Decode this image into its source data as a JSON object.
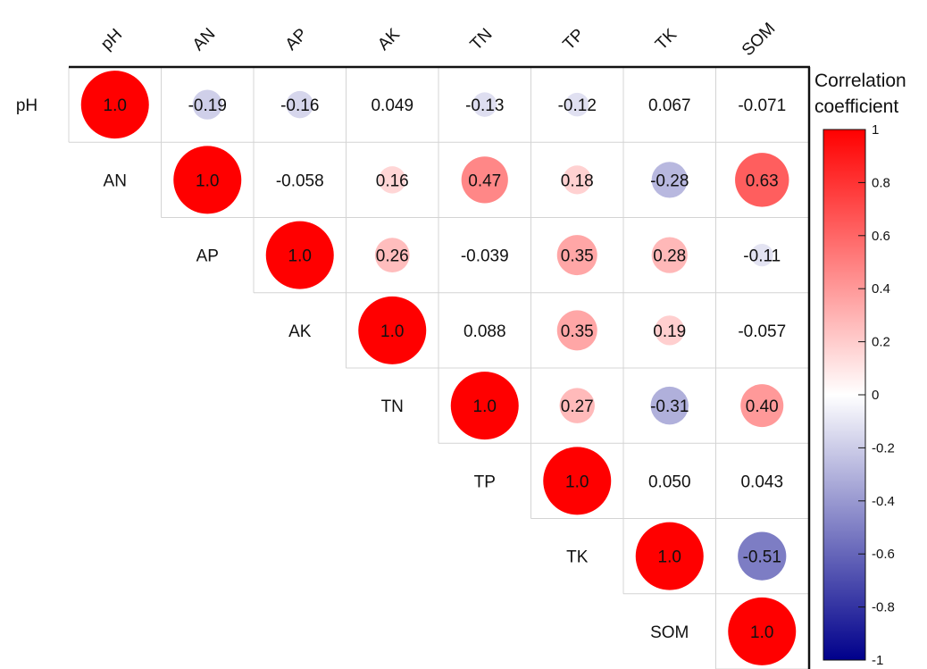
{
  "chart_data": {
    "type": "heatmap",
    "subtype": "correlation-lower-triangle-circles",
    "variables": [
      "pH",
      "AN",
      "AP",
      "AK",
      "TN",
      "TP",
      "TK",
      "SOM"
    ],
    "cells": [
      {
        "row": "pH",
        "col": "pH",
        "value": 1.0,
        "label": "1.0"
      },
      {
        "row": "pH",
        "col": "AN",
        "value": -0.19,
        "label": "-0.19"
      },
      {
        "row": "pH",
        "col": "AP",
        "value": -0.16,
        "label": "-0.16"
      },
      {
        "row": "pH",
        "col": "AK",
        "value": 0.049,
        "label": "0.049"
      },
      {
        "row": "pH",
        "col": "TN",
        "value": -0.13,
        "label": "-0.13"
      },
      {
        "row": "pH",
        "col": "TP",
        "value": -0.12,
        "label": "-0.12"
      },
      {
        "row": "pH",
        "col": "TK",
        "value": 0.067,
        "label": "0.067"
      },
      {
        "row": "pH",
        "col": "SOM",
        "value": -0.071,
        "label": "-0.071"
      },
      {
        "row": "AN",
        "col": "AN",
        "value": 1.0,
        "label": "1.0"
      },
      {
        "row": "AN",
        "col": "AP",
        "value": -0.058,
        "label": "-0.058"
      },
      {
        "row": "AN",
        "col": "AK",
        "value": 0.16,
        "label": "0.16"
      },
      {
        "row": "AN",
        "col": "TN",
        "value": 0.47,
        "label": "0.47"
      },
      {
        "row": "AN",
        "col": "TP",
        "value": 0.18,
        "label": "0.18"
      },
      {
        "row": "AN",
        "col": "TK",
        "value": -0.28,
        "label": "-0.28"
      },
      {
        "row": "AN",
        "col": "SOM",
        "value": 0.63,
        "label": "0.63"
      },
      {
        "row": "AP",
        "col": "AP",
        "value": 1.0,
        "label": "1.0"
      },
      {
        "row": "AP",
        "col": "AK",
        "value": 0.26,
        "label": "0.26"
      },
      {
        "row": "AP",
        "col": "TN",
        "value": -0.039,
        "label": "-0.039"
      },
      {
        "row": "AP",
        "col": "TP",
        "value": 0.35,
        "label": "0.35"
      },
      {
        "row": "AP",
        "col": "TK",
        "value": 0.28,
        "label": "0.28"
      },
      {
        "row": "AP",
        "col": "SOM",
        "value": -0.11,
        "label": "-0.11"
      },
      {
        "row": "AK",
        "col": "AK",
        "value": 1.0,
        "label": "1.0"
      },
      {
        "row": "AK",
        "col": "TN",
        "value": 0.088,
        "label": "0.088"
      },
      {
        "row": "AK",
        "col": "TP",
        "value": 0.35,
        "label": "0.35"
      },
      {
        "row": "AK",
        "col": "TK",
        "value": 0.19,
        "label": "0.19"
      },
      {
        "row": "AK",
        "col": "SOM",
        "value": -0.057,
        "label": "-0.057"
      },
      {
        "row": "TN",
        "col": "TN",
        "value": 1.0,
        "label": "1.0"
      },
      {
        "row": "TN",
        "col": "TP",
        "value": 0.27,
        "label": "0.27"
      },
      {
        "row": "TN",
        "col": "TK",
        "value": -0.31,
        "label": "-0.31"
      },
      {
        "row": "TN",
        "col": "SOM",
        "value": 0.4,
        "label": "0.40"
      },
      {
        "row": "TP",
        "col": "TP",
        "value": 1.0,
        "label": "1.0"
      },
      {
        "row": "TP",
        "col": "TK",
        "value": 0.05,
        "label": "0.050"
      },
      {
        "row": "TP",
        "col": "SOM",
        "value": 0.043,
        "label": "0.043"
      },
      {
        "row": "TK",
        "col": "TK",
        "value": 1.0,
        "label": "1.0"
      },
      {
        "row": "TK",
        "col": "SOM",
        "value": -0.51,
        "label": "-0.51"
      },
      {
        "row": "SOM",
        "col": "SOM",
        "value": 1.0,
        "label": "1.0"
      }
    ],
    "colorbar": {
      "title_lines": [
        "Correlation",
        "coefficient"
      ],
      "range": [
        -1,
        1
      ],
      "ticks": [
        1,
        0.8,
        0.6,
        0.4,
        0.2,
        0,
        -0.2,
        -0.4,
        -0.6,
        -0.8,
        -1
      ],
      "tick_labels": [
        "1",
        "0.8",
        "0.6",
        "0.4",
        "0.2",
        "0",
        "-0.2",
        "-0.4",
        "-0.6",
        "-0.8",
        "-1"
      ],
      "placement": "right",
      "colors": {
        "positive": "#ff0000",
        "zero": "#ffffff",
        "negative": "#00008b"
      }
    },
    "legend": {
      "placement": "right"
    },
    "grid": true
  }
}
